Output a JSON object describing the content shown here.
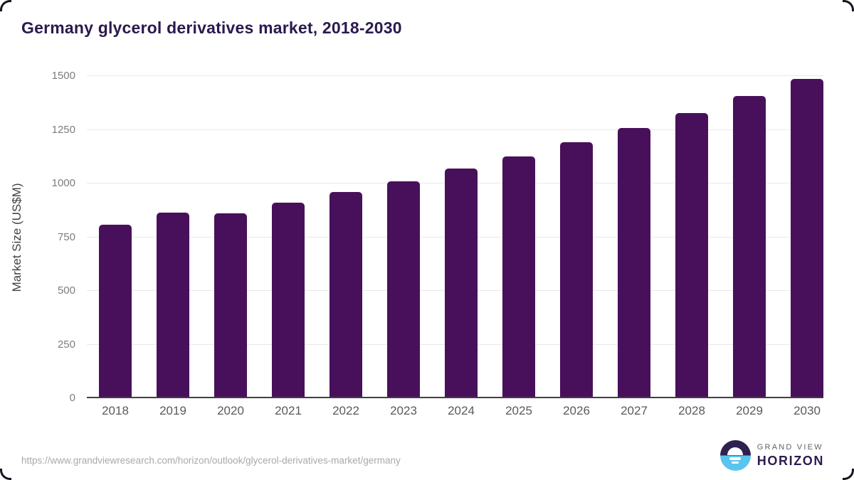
{
  "title": "Germany glycerol derivatives market, 2018-2030",
  "chart_data": {
    "type": "bar",
    "title": "Germany glycerol derivatives market, 2018-2030",
    "categories": [
      "2018",
      "2019",
      "2020",
      "2021",
      "2022",
      "2023",
      "2024",
      "2025",
      "2026",
      "2027",
      "2028",
      "2029",
      "2030"
    ],
    "values": [
      805,
      860,
      858,
      906,
      956,
      1008,
      1067,
      1122,
      1189,
      1255,
      1326,
      1404,
      1483
    ],
    "xlabel": "",
    "ylabel": "Market Size (US$M)",
    "ylim": [
      0,
      1500
    ],
    "y_ticks": [
      0,
      250,
      500,
      750,
      1000,
      1250,
      1500
    ],
    "grid": "horizontal",
    "legend": "none",
    "bar_color": "#48105a"
  },
  "footer": {
    "source_url": "https://www.grandviewresearch.com/horizon/outlook/glycerol-derivatives-market/germany",
    "logo": {
      "line1": "GRAND VIEW",
      "line2": "HORIZON"
    }
  },
  "colors": {
    "bar": "#48105a",
    "title_text": "#2b1a4e",
    "gridline": "#e9e9e9",
    "axis_line": "#404040",
    "tick_text": "#7d7d7d",
    "logo_dark": "#2e2150",
    "logo_blue": "#58c4ef"
  }
}
